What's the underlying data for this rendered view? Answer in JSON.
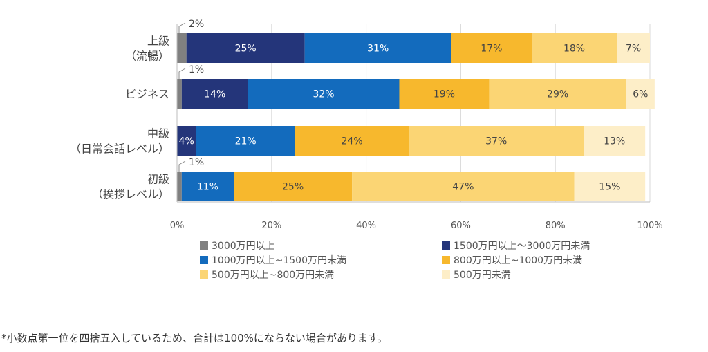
{
  "chart_data": {
    "type": "bar",
    "orientation": "horizontal",
    "stacked": true,
    "categories": [
      [
        "上級",
        "（流暢）"
      ],
      [
        "ビジネス"
      ],
      [
        "中級",
        "（日常会話レベル）"
      ],
      [
        "初級",
        "（挨拶レベル）"
      ]
    ],
    "series": [
      {
        "name": "3000万円以上",
        "color": "#808080",
        "values": [
          2,
          1,
          0,
          1
        ]
      },
      {
        "name": "1500万円以上～3000万円未満",
        "color": "#24357a",
        "values": [
          25,
          14,
          4,
          0
        ]
      },
      {
        "name": "1000万円以上~1500万円未満",
        "color": "#136bbd",
        "values": [
          31,
          32,
          21,
          11
        ]
      },
      {
        "name": "800万円以上~1000万円未満",
        "color": "#f7b82d",
        "values": [
          17,
          19,
          24,
          25
        ]
      },
      {
        "name": "500万円以上~800万円未満",
        "color": "#fbd574",
        "values": [
          18,
          29,
          37,
          47
        ]
      },
      {
        "name": "500万円未満",
        "color": "#fdeec8",
        "values": [
          7,
          6,
          13,
          15
        ]
      }
    ],
    "xlim": [
      0,
      100
    ],
    "xticks": [
      "0%",
      "20%",
      "40%",
      "60%",
      "80%",
      "100%"
    ],
    "grid": true,
    "legend_position": "bottom",
    "title": "",
    "xlabel": "",
    "ylabel": ""
  },
  "footnote": "*小数点第一位を四捨五入しているため、合計は100%にならない場合があります。"
}
